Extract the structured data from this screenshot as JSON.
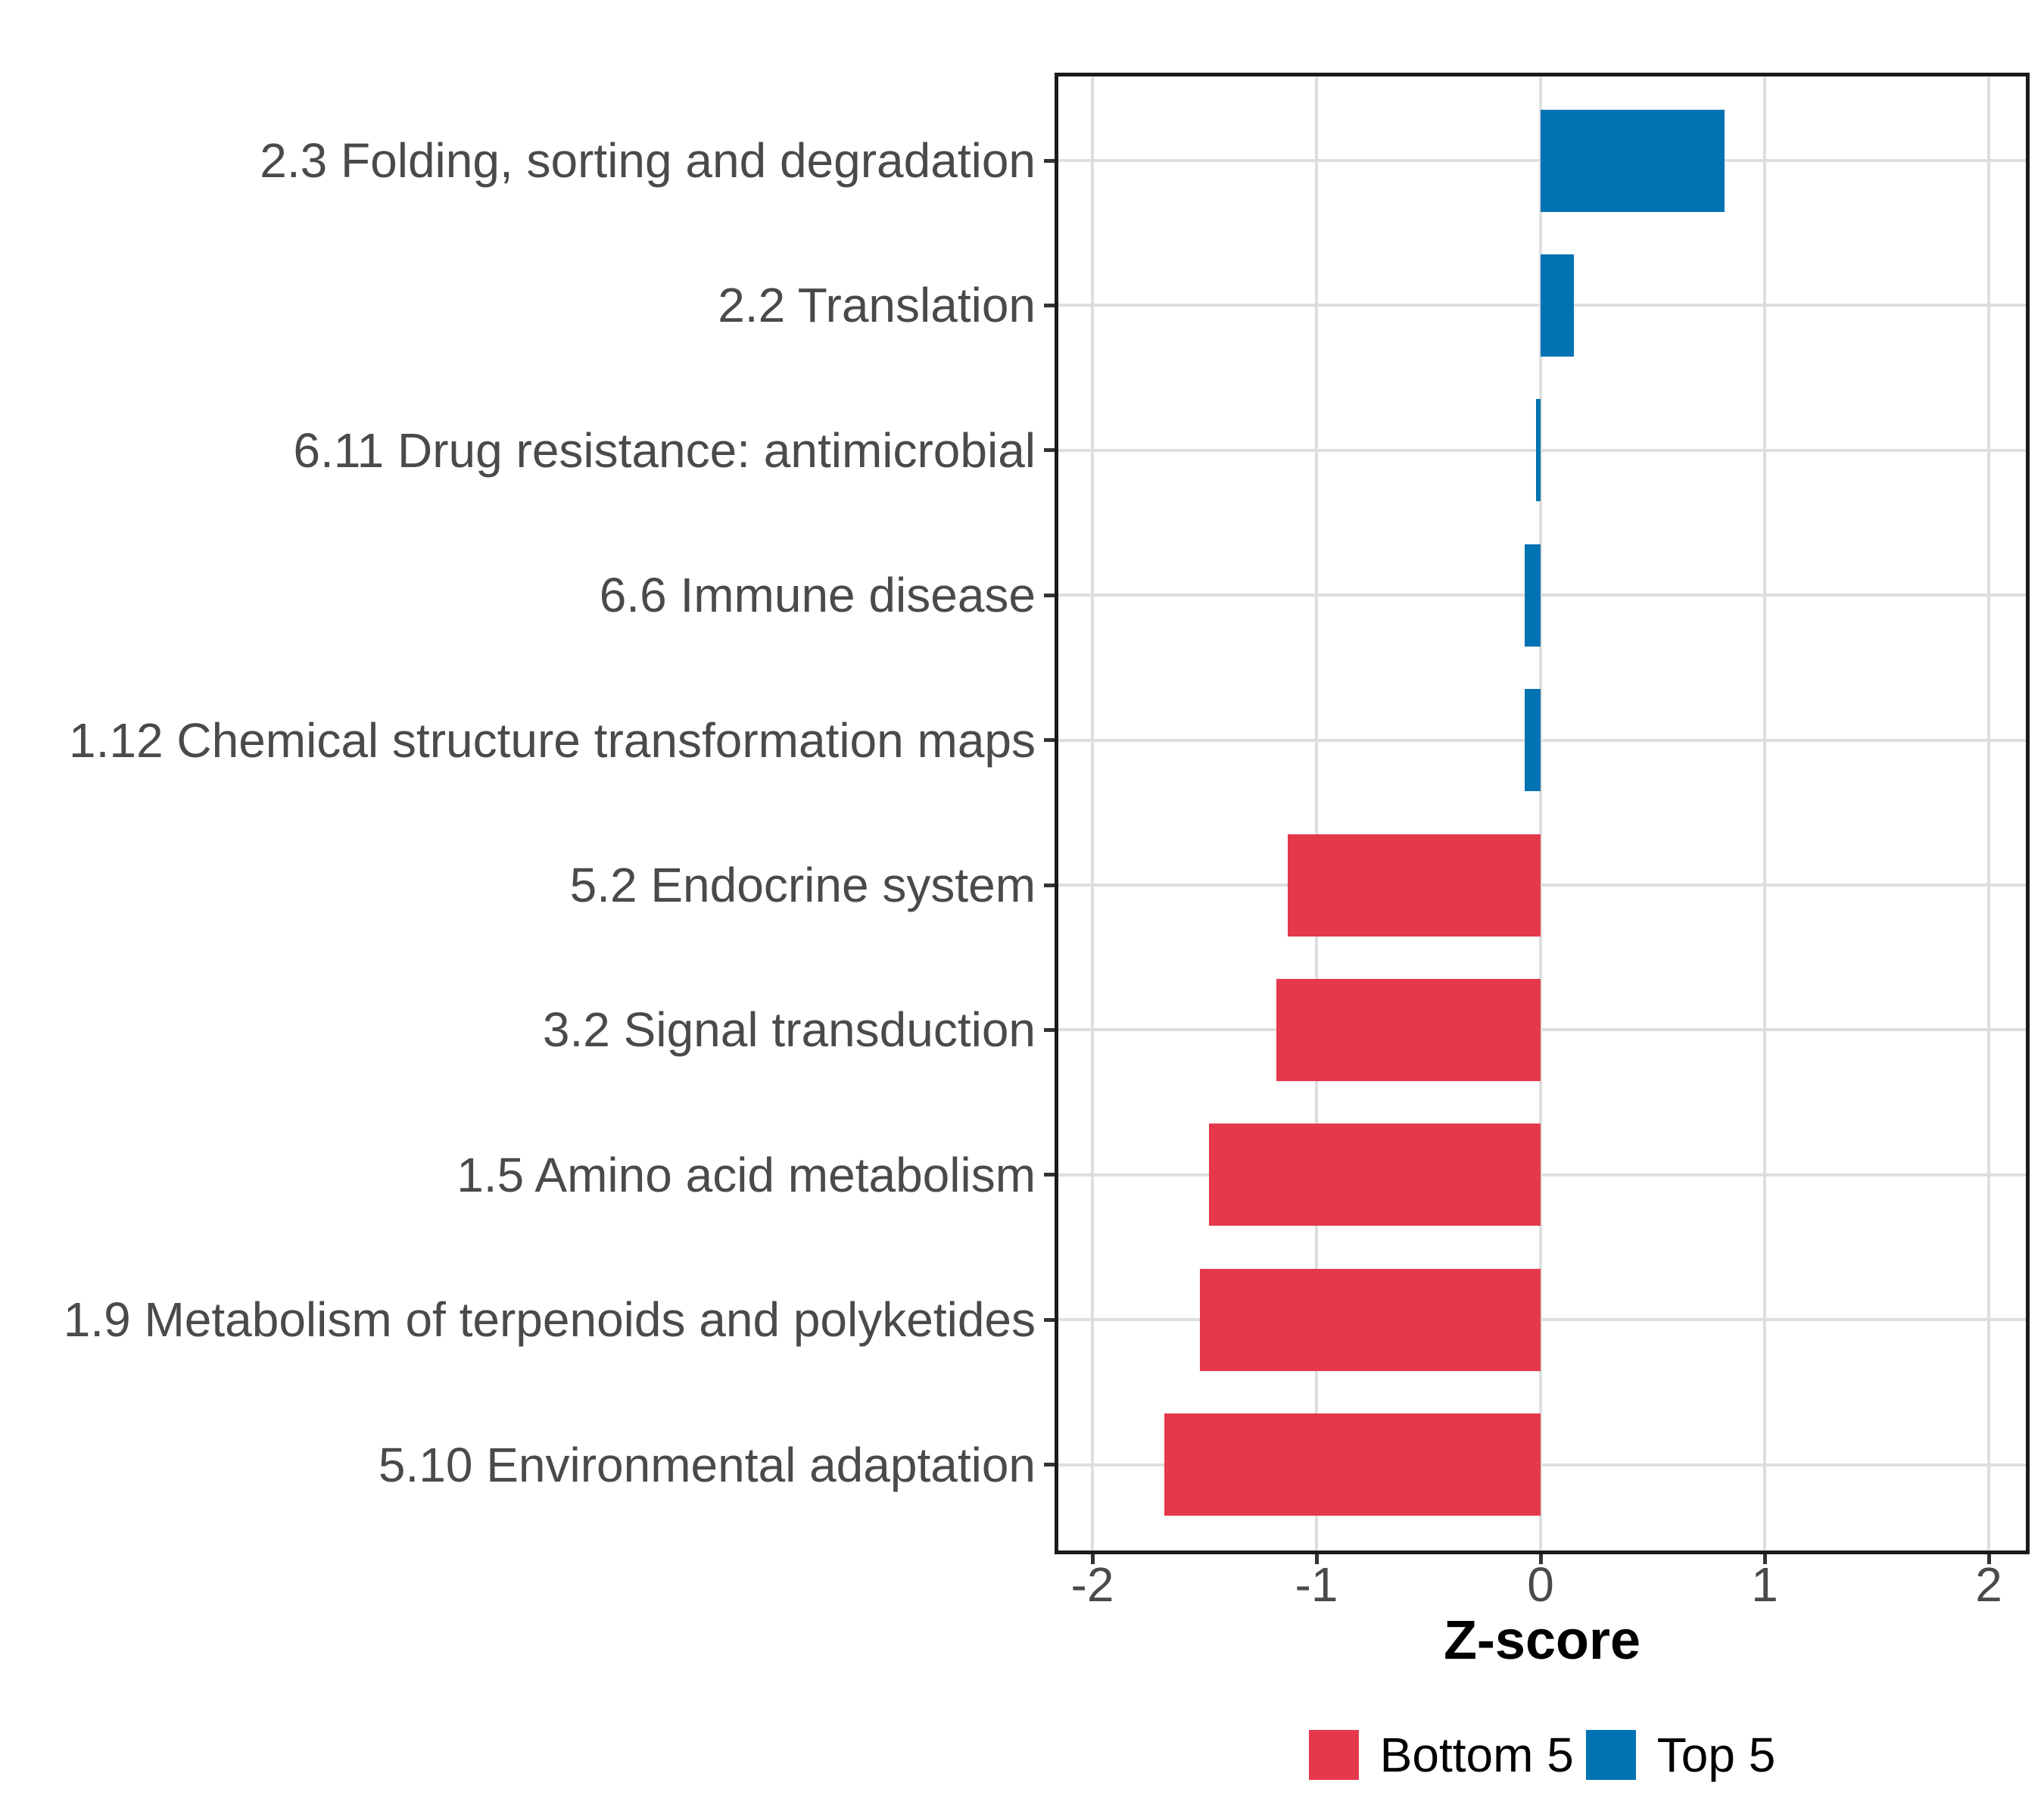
{
  "chart_data": {
    "type": "bar",
    "orientation": "horizontal",
    "title": "",
    "xlabel": "Z-score",
    "ylabel": "",
    "xlim": [
      -2.17,
      2.17
    ],
    "grid": "major-only",
    "legend_position": "bottom",
    "x_ticks": [
      {
        "label": "-2",
        "value": -2
      },
      {
        "label": "-1",
        "value": -1
      },
      {
        "label": "0",
        "value": 0
      },
      {
        "label": "1",
        "value": 1
      },
      {
        "label": "2",
        "value": 2
      }
    ],
    "bars": [
      {
        "category": "2.3 Folding, sorting and degradation",
        "value": 0.82,
        "group": "Top 5"
      },
      {
        "category": "2.2 Translation",
        "value": 0.15,
        "group": "Top 5"
      },
      {
        "category": "6.11 Drug resistance: antimicrobial",
        "value": -0.02,
        "group": "Top 5"
      },
      {
        "category": "6.6 Immune disease",
        "value": -0.07,
        "group": "Top 5"
      },
      {
        "category": "1.12 Chemical structure transformation maps",
        "value": -0.07,
        "group": "Top 5"
      },
      {
        "category": "5.2 Endocrine system",
        "value": -1.13,
        "group": "Bottom 5"
      },
      {
        "category": "3.2 Signal transduction",
        "value": -1.18,
        "group": "Bottom 5"
      },
      {
        "category": "1.5 Amino acid metabolism",
        "value": -1.48,
        "group": "Bottom 5"
      },
      {
        "category": "1.9 Metabolism of terpenoids and polyketides",
        "value": -1.52,
        "group": "Bottom 5"
      },
      {
        "category": "5.10 Environmental adaptation",
        "value": -1.68,
        "group": "Bottom 5"
      }
    ],
    "groups": [
      {
        "name": "Bottom 5",
        "color": "#E5384B"
      },
      {
        "name": "Top 5",
        "color": "#0173B2"
      }
    ],
    "colors": {
      "grid": "#DEDEDE",
      "panel_border": "#1A1A1A",
      "axis_text": "#4A4A4A",
      "tick": "#333333"
    }
  }
}
